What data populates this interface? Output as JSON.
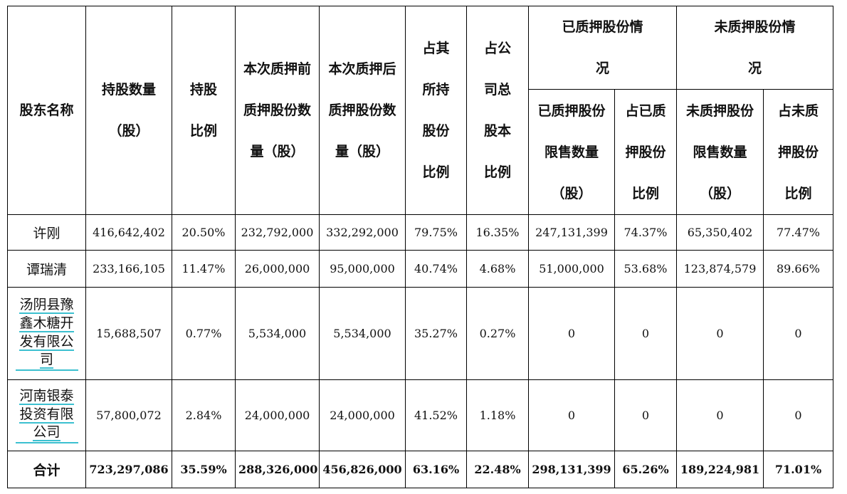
{
  "headers": {
    "shareholder": "股东名称",
    "holding_qty": "持股数量（股）",
    "holding_ratio": "持股比例",
    "pre_pledge": "本次质押前质押股份数量（股）",
    "post_pledge": "本次质押后质押股份数量（股）",
    "pct_own": "占其所持股份比例",
    "pct_total": "占公司总股本比例",
    "pledged_group": "已质押股份情况",
    "unpledged_group": "未质押股份情况",
    "pledged_restricted": "已质押股份限售数量（股）",
    "pledged_ratio": "占已质押股份比例",
    "unpledged_restricted": "未质押股份限售数量（股）",
    "unpledged_ratio": "占未质押股份比例"
  },
  "rows": [
    {
      "name": "许刚",
      "holding": "416,642,402",
      "ratio": "20.50%",
      "pre": "232,792,000",
      "post": "332,292,000",
      "own": "79.75%",
      "total": "16.35%",
      "p_restricted": "247,131,399",
      "p_ratio": "74.37%",
      "u_restricted": "65,350,402",
      "u_ratio": "77.47%"
    },
    {
      "name": "谭瑞清",
      "holding": "233,166,105",
      "ratio": "11.47%",
      "pre": "26,000,000",
      "post": "95,000,000",
      "own": "40.74%",
      "total": "4.68%",
      "p_restricted": "51,000,000",
      "p_ratio": "53.68%",
      "u_restricted": "123,874,579",
      "u_ratio": "89.66%"
    },
    {
      "name": "汤阴县豫鑫木糖开发有限公司",
      "holding": "15,688,507",
      "ratio": "0.77%",
      "pre": "5,534,000",
      "post": "5,534,000",
      "own": "35.27%",
      "total": "0.27%",
      "p_restricted": "0",
      "p_ratio": "0",
      "u_restricted": "0",
      "u_ratio": "0"
    },
    {
      "name": "河南银泰投资有限公司",
      "holding": "57,800,072",
      "ratio": "2.84%",
      "pre": "24,000,000",
      "post": "24,000,000",
      "own": "41.52%",
      "total": "1.18%",
      "p_restricted": "0",
      "p_ratio": "0",
      "u_restricted": "0",
      "u_ratio": "0"
    }
  ],
  "total_row": {
    "name": "合计",
    "holding": "723,297,086",
    "ratio": "35.59%",
    "pre": "288,326,000",
    "post": "456,826,000",
    "own": "63.16%",
    "total": "22.48%",
    "p_restricted": "298,131,399",
    "p_ratio": "65.26%",
    "u_restricted": "189,224,981",
    "u_ratio": "71.01%"
  },
  "colors": {
    "link_underline": "#3cc0d0",
    "border": "#000000",
    "text": "#111111"
  }
}
